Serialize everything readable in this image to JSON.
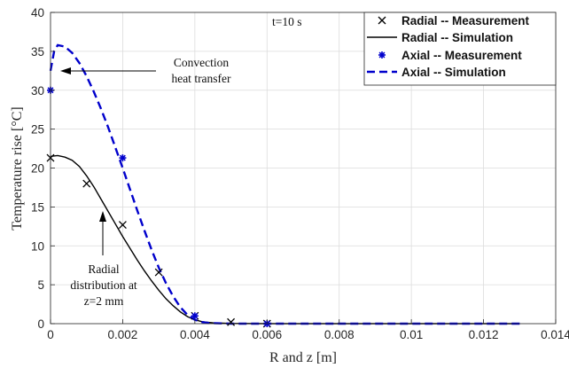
{
  "chart_data": {
    "type": "line",
    "xlabel": "R and z [m]",
    "ylabel": "Temperature rise [°C]",
    "xlim": [
      0,
      0.014
    ],
    "ylim": [
      0,
      40
    ],
    "xticks": [
      {
        "value": 0,
        "label": "0"
      },
      {
        "value": 0.002,
        "label": "0.002"
      },
      {
        "value": 0.004,
        "label": "0.004"
      },
      {
        "value": 0.006,
        "label": "0.006"
      },
      {
        "value": 0.008,
        "label": "0.008"
      },
      {
        "value": 0.01,
        "label": "0.01"
      },
      {
        "value": 0.012,
        "label": "0.012"
      },
      {
        "value": 0.014,
        "label": "0.014"
      }
    ],
    "yticks": [
      {
        "value": 0,
        "label": "0"
      },
      {
        "value": 5,
        "label": "5"
      },
      {
        "value": 10,
        "label": "10"
      },
      {
        "value": 15,
        "label": "15"
      },
      {
        "value": 20,
        "label": "20"
      },
      {
        "value": 25,
        "label": "25"
      },
      {
        "value": 30,
        "label": "30"
      },
      {
        "value": 35,
        "label": "35"
      },
      {
        "value": 40,
        "label": "40"
      }
    ],
    "grid": true,
    "legend_position": "top-right",
    "series": [
      {
        "name": "Radial -- Measurement",
        "kind": "marker",
        "marker": "x",
        "color": "#000000",
        "points": [
          [
            0,
            21.3
          ],
          [
            0.001,
            18.0
          ],
          [
            0.002,
            12.7
          ],
          [
            0.003,
            6.6
          ],
          [
            0.004,
            1.0
          ],
          [
            0.005,
            0.2
          ],
          [
            0.006,
            0.0
          ]
        ]
      },
      {
        "name": "Radial -- Simulation",
        "kind": "line",
        "dash": "solid",
        "color": "#000000",
        "points": [
          [
            0,
            21.5
          ],
          [
            0.0002,
            21.6
          ],
          [
            0.0004,
            21.4
          ],
          [
            0.0006,
            21.0
          ],
          [
            0.0008,
            20.2
          ],
          [
            0.001,
            19.0
          ],
          [
            0.0012,
            17.6
          ],
          [
            0.0014,
            16.0
          ],
          [
            0.0016,
            14.4
          ],
          [
            0.0018,
            12.8
          ],
          [
            0.002,
            11.2
          ],
          [
            0.0022,
            9.7
          ],
          [
            0.0024,
            8.2
          ],
          [
            0.0026,
            6.8
          ],
          [
            0.0028,
            5.5
          ],
          [
            0.003,
            4.3
          ],
          [
            0.0032,
            3.2
          ],
          [
            0.0034,
            2.3
          ],
          [
            0.0036,
            1.5
          ],
          [
            0.0038,
            0.9
          ],
          [
            0.004,
            0.5
          ],
          [
            0.0042,
            0.25
          ],
          [
            0.0045,
            0.1
          ],
          [
            0.005,
            0.03
          ],
          [
            0.006,
            0.0
          ],
          [
            0.008,
            0.0
          ],
          [
            0.01,
            0.0
          ],
          [
            0.012,
            0.0
          ],
          [
            0.013,
            0.0
          ]
        ]
      },
      {
        "name": "Axial -- Measurement",
        "kind": "marker",
        "marker": "asterisk",
        "color": "#0000cc",
        "points": [
          [
            0,
            30.0
          ],
          [
            0.002,
            21.3
          ],
          [
            0.004,
            1.0
          ],
          [
            0.006,
            0.0
          ]
        ]
      },
      {
        "name": "Axial -- Simulation",
        "kind": "line",
        "dash": "dashed",
        "color": "#0000cc",
        "points": [
          [
            0,
            32.5
          ],
          [
            0.0001,
            35.0
          ],
          [
            0.0002,
            35.8
          ],
          [
            0.0004,
            35.6
          ],
          [
            0.0006,
            34.8
          ],
          [
            0.0008,
            33.5
          ],
          [
            0.001,
            31.8
          ],
          [
            0.0012,
            29.8
          ],
          [
            0.0014,
            27.6
          ],
          [
            0.0016,
            25.2
          ],
          [
            0.0018,
            22.6
          ],
          [
            0.002,
            20.0
          ],
          [
            0.0022,
            17.3
          ],
          [
            0.0024,
            14.6
          ],
          [
            0.0026,
            12.0
          ],
          [
            0.0028,
            9.5
          ],
          [
            0.003,
            7.2
          ],
          [
            0.0032,
            5.2
          ],
          [
            0.0034,
            3.5
          ],
          [
            0.0036,
            2.1
          ],
          [
            0.0038,
            1.1
          ],
          [
            0.004,
            0.5
          ],
          [
            0.0042,
            0.2
          ],
          [
            0.0044,
            0.08
          ],
          [
            0.005,
            0.0
          ],
          [
            0.006,
            0.0
          ],
          [
            0.008,
            0.0
          ],
          [
            0.01,
            0.0
          ],
          [
            0.012,
            0.0
          ],
          [
            0.013,
            0.0
          ]
        ]
      }
    ],
    "annotations": [
      {
        "id": "time",
        "lines": [
          "t=10 s"
        ]
      },
      {
        "id": "convection",
        "lines": [
          "Convection",
          "heat transfer"
        ]
      },
      {
        "id": "radial",
        "lines": [
          "Radial",
          "distribution at",
          "z=2 mm"
        ]
      }
    ]
  }
}
